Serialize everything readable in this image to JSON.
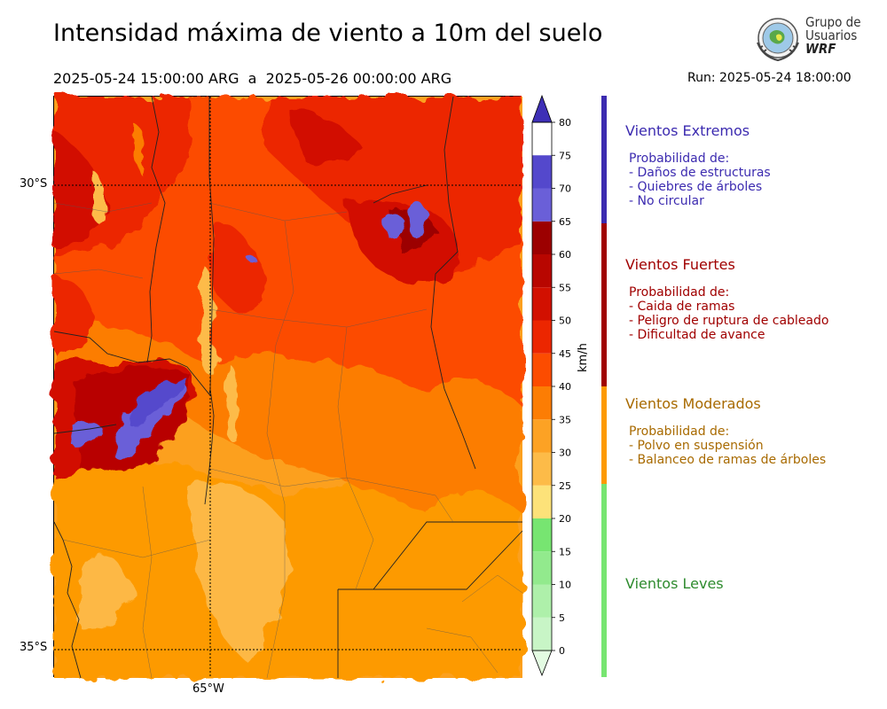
{
  "header": {
    "title": "Intensidad máxima de viento a 10m del suelo",
    "period_start": "2025-05-24 15:00:00 ARG",
    "period_sep": "a",
    "period_end": "2025-05-26 00:00:00 ARG",
    "run": "Run: 2025-05-24 18:00:00"
  },
  "logo": {
    "line1": "Grupo de",
    "line2": "Usuarios",
    "line3": "WRF"
  },
  "map": {
    "lat_labels": [
      "30°S",
      "35°S"
    ],
    "lon_labels": [
      "65°W"
    ]
  },
  "colorbar": {
    "unit": "km/h",
    "ticks": [
      "0",
      "5",
      "10",
      "15",
      "20",
      "25",
      "30",
      "35",
      "40",
      "45",
      "50",
      "55",
      "60",
      "65",
      "70",
      "75",
      "80"
    ],
    "colors": [
      "#e3fbe2",
      "#c8f5c6",
      "#aef0aa",
      "#92ea8d",
      "#77e571",
      "#fde279",
      "#fdbb48",
      "#fda224",
      "#fc7d04",
      "#fc4c00",
      "#ec2600",
      "#d21000",
      "#b80600",
      "#9c0000",
      "#6a5fd8",
      "#5448cc",
      "#3e2fb6"
    ]
  },
  "categories": [
    {
      "title": "Vientos Extremos",
      "color": "#3c2bb0",
      "lines": [
        "Probabilidad de:",
        "- Daños de estructuras",
        "- Quiebres de árboles",
        "- No circular"
      ]
    },
    {
      "title": "Vientos Fuertes",
      "color": "#a00000",
      "lines": [
        "Probabilidad de:",
        "- Caida de ramas",
        "- Peligro de ruptura de cableado",
        "- Dificultad de avance"
      ]
    },
    {
      "title": "Vientos Moderados",
      "color": "#a86a00",
      "lines": [
        "Probabilidad de:",
        "- Polvo en suspensión",
        "- Balanceo de ramas de árboles"
      ]
    },
    {
      "title": "Vientos Leves",
      "color": "#2e8b2e",
      "lines": []
    }
  ],
  "legend_bar_colors": [
    "#3c2bb0",
    "#a00000",
    "#fd9a00",
    "#77e571"
  ]
}
